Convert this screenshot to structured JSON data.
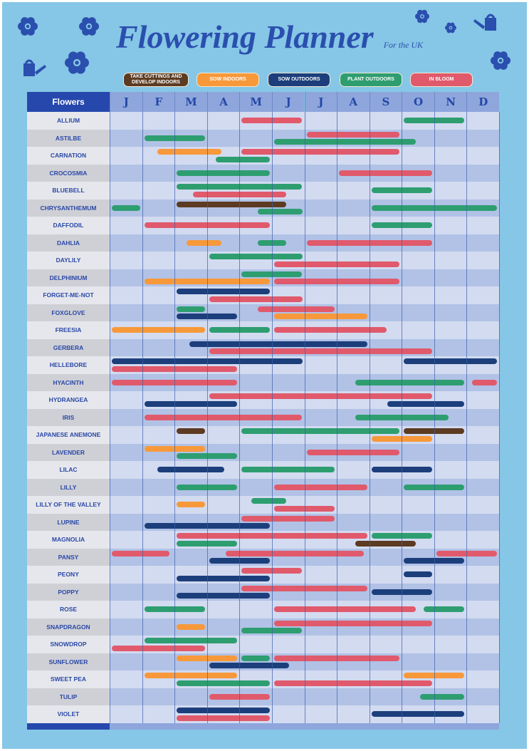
{
  "chart_data": {
    "type": "gantt",
    "title": "Flowering Planner",
    "subtitle": "For the UK",
    "first_column_header": "Flowers",
    "months": [
      "J",
      "F",
      "M",
      "A",
      "M",
      "J",
      "J",
      "A",
      "S",
      "O",
      "N",
      "D"
    ],
    "legend": [
      {
        "key": "cuttings",
        "label": "TAKE CUTTINGS AND DEVELOP INDOORS",
        "color": "#5c3b22"
      },
      {
        "key": "sow_in",
        "label": "SOW INDOORS",
        "color": "#f7993a"
      },
      {
        "key": "sow_out",
        "label": "SOW OUTDOORS",
        "color": "#1c3f7c"
      },
      {
        "key": "plant_out",
        "label": "PLANT OUTDOORS",
        "color": "#2e9e70"
      },
      {
        "key": "bloom",
        "label": "IN BLOOM",
        "color": "#e05a6c"
      }
    ],
    "value_units": "months from start of January (0 = early Jan, 12 = end of Dec)",
    "flowers": [
      {
        "name": "ALLIUM",
        "bars": [
          {
            "t": "bloom",
            "s": 4,
            "e": 6,
            "l": "mid"
          },
          {
            "t": "plant_out",
            "s": 9,
            "e": 11,
            "l": "mid"
          }
        ]
      },
      {
        "name": "ASTILBE",
        "bars": [
          {
            "t": "bloom",
            "s": 6,
            "e": 9,
            "l": "top"
          },
          {
            "t": "plant_out",
            "s": 1,
            "e": 3,
            "l": "mid"
          },
          {
            "t": "plant_out",
            "s": 5,
            "e": 9.5,
            "l": "bot"
          }
        ]
      },
      {
        "name": "CARNATION",
        "bars": [
          {
            "t": "sow_in",
            "s": 1.4,
            "e": 3.5,
            "l": "top"
          },
          {
            "t": "bloom",
            "s": 4,
            "e": 9,
            "l": "top"
          },
          {
            "t": "plant_out",
            "s": 3.2,
            "e": 5,
            "l": "bot"
          }
        ]
      },
      {
        "name": "CROCOSMIA",
        "bars": [
          {
            "t": "plant_out",
            "s": 2,
            "e": 5,
            "l": "mid"
          },
          {
            "t": "bloom",
            "s": 7,
            "e": 10,
            "l": "mid"
          }
        ]
      },
      {
        "name": "BLUEBELL",
        "bars": [
          {
            "t": "plant_out",
            "s": 2,
            "e": 6,
            "l": "top"
          },
          {
            "t": "bloom",
            "s": 2.5,
            "e": 5.5,
            "l": "bot"
          },
          {
            "t": "plant_out",
            "s": 8,
            "e": 10,
            "l": "mid"
          }
        ]
      },
      {
        "name": "CHRYSANTHEMUM",
        "bars": [
          {
            "t": "plant_out",
            "s": 0,
            "e": 1,
            "l": "mid"
          },
          {
            "t": "cuttings",
            "s": 2,
            "e": 5.5,
            "l": "top"
          },
          {
            "t": "plant_out",
            "s": 4.5,
            "e": 6,
            "l": "bot"
          },
          {
            "t": "plant_out",
            "s": 8,
            "e": 12,
            "l": "mid"
          }
        ]
      },
      {
        "name": "DAFFODIL",
        "bars": [
          {
            "t": "bloom",
            "s": 1,
            "e": 5,
            "l": "mid"
          },
          {
            "t": "plant_out",
            "s": 8,
            "e": 10,
            "l": "mid"
          }
        ]
      },
      {
        "name": "DAHLIA",
        "bars": [
          {
            "t": "sow_in",
            "s": 2.3,
            "e": 3.5,
            "l": "mid"
          },
          {
            "t": "plant_out",
            "s": 4.5,
            "e": 5.5,
            "l": "mid"
          },
          {
            "t": "bloom",
            "s": 6,
            "e": 10,
            "l": "mid"
          }
        ]
      },
      {
        "name": "DAYLILY",
        "bars": [
          {
            "t": "plant_out",
            "s": 3,
            "e": 6,
            "l": "top"
          },
          {
            "t": "bloom",
            "s": 5,
            "e": 9,
            "l": "bot"
          }
        ]
      },
      {
        "name": "DELPHINIUM",
        "bars": [
          {
            "t": "plant_out",
            "s": 4,
            "e": 6,
            "l": "top"
          },
          {
            "t": "sow_in",
            "s": 1,
            "e": 5,
            "l": "bot"
          },
          {
            "t": "bloom",
            "s": 5,
            "e": 9,
            "l": "bot"
          }
        ]
      },
      {
        "name": "FORGET-ME-NOT",
        "bars": [
          {
            "t": "sow_out",
            "s": 2,
            "e": 5,
            "l": "top"
          },
          {
            "t": "bloom",
            "s": 3,
            "e": 6,
            "l": "bot"
          }
        ]
      },
      {
        "name": "FOXGLOVE",
        "bars": [
          {
            "t": "plant_out",
            "s": 2,
            "e": 3,
            "l": "top"
          },
          {
            "t": "bloom",
            "s": 4.5,
            "e": 7,
            "l": "top"
          },
          {
            "t": "sow_out",
            "s": 2,
            "e": 4,
            "l": "bot"
          },
          {
            "t": "sow_in",
            "s": 5,
            "e": 8,
            "l": "bot"
          }
        ]
      },
      {
        "name": "FREESIA",
        "bars": [
          {
            "t": "sow_in",
            "s": 0,
            "e": 3,
            "l": "mid"
          },
          {
            "t": "plant_out",
            "s": 3,
            "e": 5,
            "l": "mid"
          },
          {
            "t": "bloom",
            "s": 5,
            "e": 8.6,
            "l": "mid"
          }
        ]
      },
      {
        "name": "GERBERA",
        "bars": [
          {
            "t": "sow_out",
            "s": 2.4,
            "e": 8,
            "l": "top"
          },
          {
            "t": "bloom",
            "s": 3,
            "e": 10,
            "l": "bot"
          }
        ]
      },
      {
        "name": "HELLEBORE",
        "bars": [
          {
            "t": "sow_out",
            "s": 0,
            "e": 6,
            "l": "top"
          },
          {
            "t": "sow_out",
            "s": 9,
            "e": 12,
            "l": "top"
          },
          {
            "t": "bloom",
            "s": 0,
            "e": 4,
            "l": "bot"
          }
        ]
      },
      {
        "name": "HYACINTH",
        "bars": [
          {
            "t": "bloom",
            "s": 0,
            "e": 4,
            "l": "mid"
          },
          {
            "t": "plant_out",
            "s": 7.5,
            "e": 11,
            "l": "mid"
          },
          {
            "t": "bloom",
            "s": 11.1,
            "e": 12,
            "l": "mid"
          }
        ]
      },
      {
        "name": "HYDRANGEA",
        "bars": [
          {
            "t": "bloom",
            "s": 3,
            "e": 10,
            "l": "top"
          },
          {
            "t": "sow_out",
            "s": 1,
            "e": 4,
            "l": "bot"
          },
          {
            "t": "sow_out",
            "s": 8.5,
            "e": 11,
            "l": "bot"
          }
        ]
      },
      {
        "name": "IRIS",
        "bars": [
          {
            "t": "bloom",
            "s": 1,
            "e": 6,
            "l": "mid"
          },
          {
            "t": "plant_out",
            "s": 7.5,
            "e": 10.5,
            "l": "mid"
          }
        ]
      },
      {
        "name": "JAPANESE ANEMONE",
        "bars": [
          {
            "t": "cuttings",
            "s": 2,
            "e": 3,
            "l": "top"
          },
          {
            "t": "plant_out",
            "s": 4,
            "e": 9,
            "l": "top"
          },
          {
            "t": "cuttings",
            "s": 9,
            "e": 11,
            "l": "top"
          },
          {
            "t": "sow_in",
            "s": 8,
            "e": 10,
            "l": "bot"
          }
        ]
      },
      {
        "name": "LAVENDER",
        "bars": [
          {
            "t": "sow_in",
            "s": 1,
            "e": 3,
            "l": "top"
          },
          {
            "t": "bloom",
            "s": 6,
            "e": 9,
            "l": "mid"
          },
          {
            "t": "plant_out",
            "s": 2,
            "e": 4,
            "l": "bot"
          }
        ]
      },
      {
        "name": "LILAC",
        "bars": [
          {
            "t": "sow_out",
            "s": 1.4,
            "e": 3.6,
            "l": "mid"
          },
          {
            "t": "plant_out",
            "s": 4,
            "e": 7,
            "l": "mid"
          },
          {
            "t": "sow_out",
            "s": 8,
            "e": 10,
            "l": "mid"
          }
        ]
      },
      {
        "name": "LILLY",
        "bars": [
          {
            "t": "plant_out",
            "s": 2,
            "e": 4,
            "l": "mid"
          },
          {
            "t": "bloom",
            "s": 5,
            "e": 8,
            "l": "mid"
          },
          {
            "t": "plant_out",
            "s": 9,
            "e": 11,
            "l": "mid"
          }
        ]
      },
      {
        "name": "LILLY OF THE VALLEY",
        "bars": [
          {
            "t": "sow_in",
            "s": 2,
            "e": 3,
            "l": "mid"
          },
          {
            "t": "plant_out",
            "s": 4.3,
            "e": 5.5,
            "l": "top"
          },
          {
            "t": "bloom",
            "s": 5,
            "e": 7,
            "l": "bot"
          }
        ]
      },
      {
        "name": "LUPINE",
        "bars": [
          {
            "t": "bloom",
            "s": 4,
            "e": 7,
            "l": "top"
          },
          {
            "t": "sow_out",
            "s": 1,
            "e": 5,
            "l": "bot"
          }
        ]
      },
      {
        "name": "MAGNOLIA",
        "bars": [
          {
            "t": "bloom",
            "s": 2,
            "e": 8,
            "l": "top"
          },
          {
            "t": "plant_out",
            "s": 8,
            "e": 10,
            "l": "top"
          },
          {
            "t": "plant_out",
            "s": 2,
            "e": 4,
            "l": "bot"
          },
          {
            "t": "cuttings",
            "s": 7.5,
            "e": 9.5,
            "l": "bot"
          }
        ]
      },
      {
        "name": "PANSY",
        "bars": [
          {
            "t": "bloom",
            "s": 0,
            "e": 1.9,
            "l": "top"
          },
          {
            "t": "bloom",
            "s": 3.5,
            "e": 7.9,
            "l": "top"
          },
          {
            "t": "bloom",
            "s": 10,
            "e": 12,
            "l": "top"
          },
          {
            "t": "sow_out",
            "s": 3,
            "e": 5,
            "l": "bot"
          },
          {
            "t": "sow_out",
            "s": 9,
            "e": 11,
            "l": "bot"
          }
        ]
      },
      {
        "name": "PEONY",
        "bars": [
          {
            "t": "bloom",
            "s": 4,
            "e": 6,
            "l": "top"
          },
          {
            "t": "sow_out",
            "s": 9,
            "e": 10,
            "l": "mid"
          },
          {
            "t": "sow_out",
            "s": 2,
            "e": 5,
            "l": "bot"
          }
        ]
      },
      {
        "name": "POPPY",
        "bars": [
          {
            "t": "bloom",
            "s": 4,
            "e": 8,
            "l": "top"
          },
          {
            "t": "sow_out",
            "s": 8,
            "e": 10,
            "l": "mid"
          },
          {
            "t": "sow_out",
            "s": 2,
            "e": 5,
            "l": "bot"
          }
        ]
      },
      {
        "name": "ROSE",
        "bars": [
          {
            "t": "plant_out",
            "s": 1,
            "e": 3,
            "l": "mid"
          },
          {
            "t": "bloom",
            "s": 5,
            "e": 9.5,
            "l": "mid"
          },
          {
            "t": "plant_out",
            "s": 9.6,
            "e": 11,
            "l": "mid"
          }
        ]
      },
      {
        "name": "SNAPDRAGON",
        "bars": [
          {
            "t": "sow_in",
            "s": 2,
            "e": 3,
            "l": "mid"
          },
          {
            "t": "bloom",
            "s": 5,
            "e": 10,
            "l": "top"
          },
          {
            "t": "plant_out",
            "s": 4,
            "e": 6,
            "l": "bot"
          }
        ]
      },
      {
        "name": "SNOWDROP",
        "bars": [
          {
            "t": "plant_out",
            "s": 1,
            "e": 4,
            "l": "top"
          },
          {
            "t": "bloom",
            "s": 0,
            "e": 3,
            "l": "bot"
          }
        ]
      },
      {
        "name": "SUNFLOWER",
        "bars": [
          {
            "t": "sow_in",
            "s": 2,
            "e": 4,
            "l": "top"
          },
          {
            "t": "plant_out",
            "s": 4,
            "e": 5,
            "l": "top"
          },
          {
            "t": "bloom",
            "s": 5,
            "e": 9,
            "l": "top"
          },
          {
            "t": "sow_out",
            "s": 3,
            "e": 5.6,
            "l": "bot"
          }
        ]
      },
      {
        "name": "SWEET PEA",
        "bars": [
          {
            "t": "sow_in",
            "s": 1,
            "e": 4,
            "l": "top"
          },
          {
            "t": "sow_in",
            "s": 9,
            "e": 11,
            "l": "top"
          },
          {
            "t": "plant_out",
            "s": 2,
            "e": 5,
            "l": "bot"
          },
          {
            "t": "bloom",
            "s": 5,
            "e": 10,
            "l": "bot"
          }
        ]
      },
      {
        "name": "TULIP",
        "bars": [
          {
            "t": "bloom",
            "s": 3,
            "e": 5,
            "l": "mid"
          },
          {
            "t": "plant_out",
            "s": 9.5,
            "e": 11,
            "l": "mid"
          }
        ]
      },
      {
        "name": "VIOLET",
        "bars": [
          {
            "t": "sow_out",
            "s": 2,
            "e": 5,
            "l": "top"
          },
          {
            "t": "sow_out",
            "s": 8,
            "e": 11,
            "l": "mid"
          },
          {
            "t": "bloom",
            "s": 2,
            "e": 5,
            "l": "bot"
          }
        ]
      }
    ]
  },
  "colors": {
    "background": "#86c6e6",
    "title": "#2a4fae",
    "header_dark": "#2648ad",
    "header_month": "#8ea6dc"
  },
  "icons": [
    "flower-icon",
    "watering-can-icon"
  ]
}
